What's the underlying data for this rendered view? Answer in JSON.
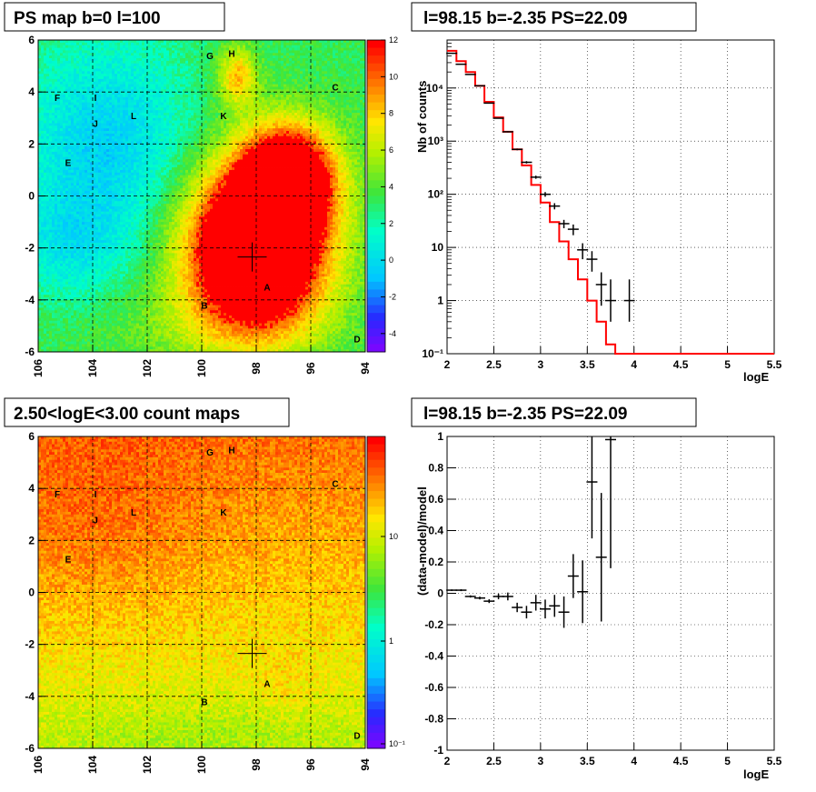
{
  "panels": {
    "ps_map": {
      "title": "PS map b=0 l=100",
      "colorbar_ticks": [
        "12",
        "10",
        "8",
        "6",
        "4",
        "2",
        "0",
        "-2",
        "-4"
      ],
      "colorbar_range": [
        -5,
        12
      ]
    },
    "count_map": {
      "title": "2.50<logE<3.00 count maps",
      "colorbar_ticks": [
        "10",
        "1",
        "10⁻¹"
      ]
    },
    "spectrum": {
      "title": "l=98.15 b=-2.35 PS=22.09",
      "xlabel": "logE",
      "ylabel": "Nb of counts",
      "y_tick_labels": [
        "10⁻¹",
        "1",
        "10",
        "10²",
        "10³",
        "10⁴"
      ]
    },
    "residual": {
      "title": "l=98.15 b=-2.35 PS=22.09",
      "xlabel": "logE",
      "ylabel": "(data-model)/model"
    }
  },
  "sky_axes": {
    "x_ticks": [
      "106",
      "104",
      "102",
      "100",
      "98",
      "96",
      "94"
    ],
    "y_ticks": [
      "6",
      "4",
      "2",
      "0",
      "-2",
      "-4",
      "-6"
    ],
    "xlim": [
      106,
      94
    ],
    "ylim": [
      -6,
      6
    ]
  },
  "source_markers": [
    {
      "label": "A",
      "l": 97.6,
      "b": -3.5
    },
    {
      "label": "B",
      "l": 99.9,
      "b": -4.2
    },
    {
      "label": "C",
      "l": 95.1,
      "b": 4.2
    },
    {
      "label": "D",
      "l": 94.3,
      "b": -5.5
    },
    {
      "label": "E",
      "l": 104.9,
      "b": 1.3
    },
    {
      "label": "F",
      "l": 105.3,
      "b": 3.8
    },
    {
      "label": "G",
      "l": 99.7,
      "b": 5.4
    },
    {
      "label": "H",
      "l": 98.9,
      "b": 5.5
    },
    {
      "label": "I",
      "l": 103.9,
      "b": 3.8
    },
    {
      "label": "J",
      "l": 103.9,
      "b": 2.8
    },
    {
      "label": "K",
      "l": 99.2,
      "b": 3.1
    },
    {
      "label": "L",
      "l": 102.5,
      "b": 3.1
    }
  ],
  "cross_position": {
    "l": 98.15,
    "b": -2.35
  },
  "chart_data": [
    {
      "type": "heatmap",
      "title": "PS map b=0 l=100",
      "xlim": [
        106,
        94
      ],
      "ylim": [
        -6,
        6
      ],
      "z_range": [
        -5,
        12
      ],
      "description_values": {
        "peak_region_center": [
          98,
          -2.3
        ],
        "peak_value": 12
      }
    },
    {
      "type": "heatmap",
      "title": "2.50<logE<3.00 count maps",
      "xlim": [
        106,
        94
      ],
      "ylim": [
        -6,
        6
      ],
      "z_scale": "log"
    },
    {
      "type": "line",
      "title": "l=98.15 b=-2.35 PS=22.09",
      "xlabel": "logE",
      "ylabel": "Nb of counts",
      "xlim": [
        2,
        5.5
      ],
      "ylim": [
        0.1,
        80000
      ],
      "yscale": "log",
      "grid": true,
      "bin_edges": [
        2.0,
        2.1,
        2.2,
        2.3,
        2.4,
        2.5,
        2.6,
        2.7,
        2.8,
        2.9,
        3.0,
        3.1,
        3.2,
        3.3,
        3.4,
        3.5,
        3.6,
        3.7,
        3.8,
        3.9,
        4.0,
        4.1,
        4.2,
        4.3,
        4.4,
        4.5,
        4.6,
        4.7,
        4.8,
        4.9,
        5.0,
        5.1,
        5.2,
        5.3,
        5.4,
        5.5
      ],
      "series": [
        {
          "name": "model",
          "color": "#ff0000",
          "values": [
            50000,
            32000,
            20000,
            11000,
            5500,
            2800,
            1500,
            700,
            350,
            150,
            70,
            30,
            13,
            6,
            2.5,
            1.0,
            0.4,
            0.15,
            0.1,
            0.1,
            0.1,
            0.1,
            0.1,
            0.1,
            0.1,
            0.1,
            0.1,
            0.1,
            0.1,
            0.1,
            0.1,
            0.1,
            0.1,
            0.1,
            0.1
          ]
        },
        {
          "name": "data",
          "color": "#000000",
          "x": [
            2.05,
            2.15,
            2.25,
            2.35,
            2.45,
            2.55,
            2.65,
            2.75,
            2.85,
            2.95,
            3.05,
            3.15,
            3.25,
            3.35,
            3.45,
            3.55,
            3.65,
            3.75,
            3.95
          ],
          "y": [
            45000,
            28000,
            18000,
            11000,
            5200,
            2700,
            1500,
            700,
            400,
            210,
            100,
            60,
            28,
            22,
            9,
            6,
            2,
            1,
            1
          ],
          "yerr_low": [
            200,
            170,
            130,
            105,
            70,
            50,
            38,
            26,
            20,
            14,
            10,
            8,
            5,
            5,
            3,
            2.5,
            1.2,
            0.6,
            0.6
          ],
          "yerr_high": [
            200,
            170,
            130,
            105,
            70,
            50,
            38,
            26,
            20,
            14,
            10,
            8,
            5,
            5,
            3,
            2.5,
            1.4,
            1.5,
            1.5
          ]
        }
      ]
    },
    {
      "type": "scatter",
      "title": "l=98.15 b=-2.35 PS=22.09",
      "xlabel": "logE",
      "ylabel": "(data-model)/model",
      "xlim": [
        2,
        5.5
      ],
      "ylim": [
        -1,
        1
      ],
      "grid": true,
      "series": [
        {
          "name": "residual",
          "x": [
            2.05,
            2.15,
            2.25,
            2.35,
            2.45,
            2.55,
            2.65,
            2.75,
            2.85,
            2.95,
            3.05,
            3.15,
            3.25,
            3.35,
            3.45,
            3.55,
            3.65,
            3.75
          ],
          "y": [
            0.02,
            0.02,
            -0.02,
            -0.03,
            -0.05,
            -0.02,
            -0.02,
            -0.09,
            -0.12,
            -0.06,
            -0.1,
            -0.08,
            -0.12,
            0.11,
            0.01,
            0.71,
            0.23,
            0.98
          ],
          "yerr": [
            0.005,
            0.006,
            0.007,
            0.009,
            0.012,
            0.018,
            0.025,
            0.03,
            0.04,
            0.05,
            0.06,
            0.07,
            0.1,
            0.14,
            0.2,
            0.36,
            0.41,
            0.82
          ]
        }
      ]
    }
  ]
}
